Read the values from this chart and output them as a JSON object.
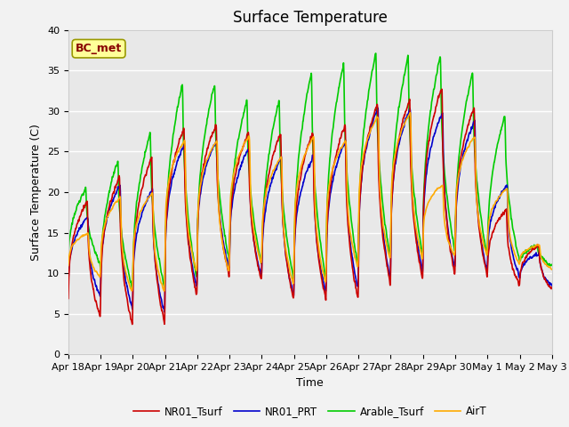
{
  "title": "Surface Temperature",
  "ylabel": "Surface Temperature (C)",
  "xlabel": "Time",
  "ylim": [
    0,
    40
  ],
  "annotation": "BC_met",
  "x_tick_labels": [
    "Apr 18",
    "Apr 19",
    "Apr 20",
    "Apr 21",
    "Apr 22",
    "Apr 23",
    "Apr 24",
    "Apr 25",
    "Apr 26",
    "Apr 27",
    "Apr 28",
    "Apr 29",
    "Apr 30",
    "May 1",
    "May 2",
    "May 3"
  ],
  "legend_labels": [
    "NR01_Tsurf",
    "NR01_PRT",
    "Arable_Tsurf",
    "AirT"
  ],
  "colors": [
    "#cc0000",
    "#0000cc",
    "#00cc00",
    "#ffaa00"
  ],
  "line_width": 1.2,
  "plot_bg_color": "#e8e8e8",
  "title_fontsize": 12,
  "axes_label_fontsize": 9,
  "tick_fontsize": 8,
  "annotation_bg": "#ffff99",
  "annotation_fg": "#880000",
  "n_days": 15,
  "peaks_per_day": 2,
  "day_mins_red": [
    4.5,
    3.5,
    3.5,
    7.0,
    9.5,
    9.0,
    6.5,
    6.5,
    6.5,
    8.5,
    9.0,
    9.5,
    9.5,
    8.5,
    8.0,
    7.0
  ],
  "day_peaks_red": [
    19.0,
    22.0,
    24.5,
    28.0,
    28.5,
    27.5,
    27.5,
    27.5,
    28.5,
    31.0,
    31.5,
    33.0,
    30.5,
    18.0,
    13.5,
    8.0
  ],
  "day_mins_blue": [
    7.0,
    5.5,
    5.0,
    8.0,
    10.5,
    9.5,
    7.0,
    7.5,
    8.0,
    9.0,
    10.0,
    10.5,
    10.0,
    9.5,
    8.5,
    7.5
  ],
  "day_peaks_blue": [
    17.0,
    21.0,
    20.5,
    26.0,
    26.5,
    25.5,
    24.5,
    24.5,
    26.5,
    30.5,
    30.5,
    30.0,
    29.0,
    21.0,
    12.5,
    8.0
  ],
  "day_mins_green": [
    11.0,
    8.0,
    8.0,
    9.0,
    11.5,
    11.0,
    9.0,
    9.0,
    10.5,
    11.5,
    12.0,
    12.5,
    12.0,
    11.5,
    11.0,
    10.0
  ],
  "day_peaks_green": [
    20.5,
    24.0,
    27.5,
    33.5,
    33.5,
    31.5,
    31.5,
    35.0,
    36.0,
    37.5,
    37.0,
    37.0,
    35.0,
    29.5,
    13.5,
    8.0
  ],
  "day_mins_airt": [
    9.5,
    7.5,
    7.5,
    10.0,
    10.0,
    11.0,
    8.5,
    8.5,
    10.5,
    11.5,
    11.5,
    12.0,
    12.0,
    11.0,
    10.5,
    9.5
  ],
  "day_peaks_airt": [
    15.0,
    19.5,
    20.0,
    26.5,
    26.5,
    27.0,
    24.5,
    27.0,
    26.5,
    29.5,
    30.0,
    21.0,
    27.0,
    20.5,
    13.5,
    8.0
  ]
}
